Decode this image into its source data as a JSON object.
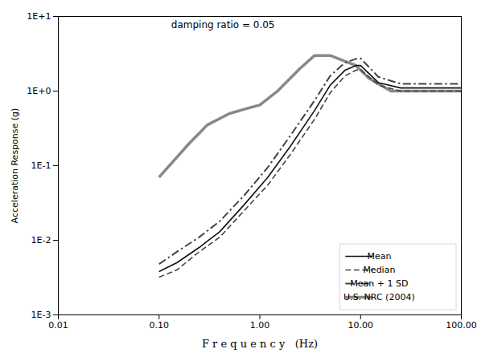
{
  "chart_data": {
    "type": "line",
    "annotations": [
      "damping ratio = 0.05"
    ],
    "xlabel": "F r e q u e n c y   (Hz)",
    "ylabel": "Acceleration Response (g)",
    "log": true,
    "grid": false,
    "legend": "lower right",
    "xlim": [
      0.01,
      100.0
    ],
    "ylim": [
      0.001,
      10.0
    ],
    "xticks": [
      0.01,
      {
        "value": 0.1,
        "label": "0.10"
      },
      {
        "value": 1.0,
        "label": "1.00"
      },
      {
        "value": 10.0,
        "label": "10.00"
      },
      {
        "value": 100.0,
        "label": "100.00"
      }
    ],
    "yticks": [
      {
        "value": 0.001,
        "label": "1E-3"
      },
      {
        "value": 0.01,
        "label": "1E-2"
      },
      {
        "value": 0.1,
        "label": "1E-1"
      },
      {
        "value": 1.0,
        "label": "1E+0"
      },
      {
        "value": 10.0,
        "label": "1E+1"
      }
    ],
    "series": [
      {
        "name": "Mean",
        "color": "#111111",
        "line_style": "solid",
        "x": [
          0.1,
          0.15,
          0.25,
          0.4,
          0.7,
          1.2,
          2.0,
          3.5,
          5.0,
          7.0,
          9.0,
          10.0,
          15.0,
          25.0,
          50.0,
          100.0
        ],
        "values": [
          0.0038,
          0.005,
          0.008,
          0.013,
          0.03,
          0.07,
          0.18,
          0.55,
          1.2,
          1.9,
          2.2,
          2.2,
          1.3,
          1.1,
          1.1,
          1.1
        ]
      },
      {
        "name": "Median",
        "color": "#444444",
        "line_style": "dashed",
        "x": [
          0.1,
          0.15,
          0.25,
          0.4,
          0.7,
          1.2,
          2.0,
          3.5,
          5.0,
          7.0,
          9.0,
          10.0,
          15.0,
          25.0,
          50.0,
          100.0
        ],
        "values": [
          0.0032,
          0.004,
          0.007,
          0.011,
          0.025,
          0.055,
          0.14,
          0.42,
          0.95,
          1.6,
          1.9,
          1.95,
          1.2,
          1.0,
          1.0,
          1.0
        ]
      },
      {
        "name": "Mean + 1 SD",
        "color": "#444444",
        "line_style": "dashdot",
        "x": [
          0.1,
          0.15,
          0.25,
          0.4,
          0.7,
          1.2,
          2.0,
          3.5,
          5.0,
          7.0,
          9.0,
          10.0,
          15.0,
          25.0,
          50.0,
          100.0
        ],
        "values": [
          0.0048,
          0.007,
          0.011,
          0.018,
          0.04,
          0.095,
          0.25,
          0.75,
          1.6,
          2.4,
          2.7,
          2.75,
          1.55,
          1.25,
          1.25,
          1.25
        ]
      },
      {
        "name": "U.S. NRC (2004)",
        "color": "#888888",
        "line_style": "solid",
        "x": [
          0.1,
          0.2,
          0.3,
          0.5,
          0.8,
          1.0,
          1.5,
          2.5,
          3.5,
          5.0,
          7.0,
          9.0,
          12.0,
          20.0,
          33.0,
          50.0,
          100.0
        ],
        "values": [
          0.07,
          0.2,
          0.35,
          0.5,
          0.6,
          0.65,
          1.0,
          2.0,
          3.0,
          3.0,
          2.5,
          2.2,
          1.5,
          1.0,
          1.0,
          1.0,
          1.0
        ]
      }
    ]
  }
}
